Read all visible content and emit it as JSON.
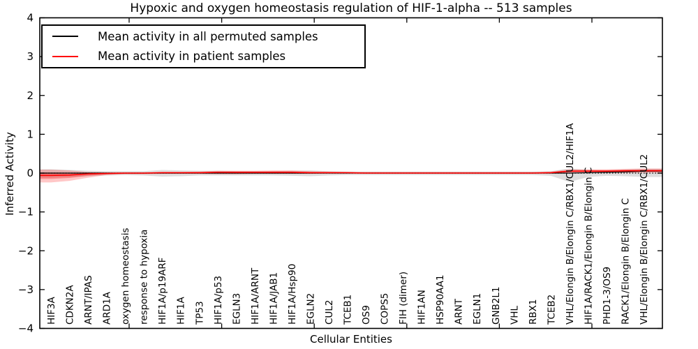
{
  "chart_data": {
    "type": "line",
    "title": "Hypoxic and oxygen homeostasis regulation of HIF-1-alpha -- 513 samples",
    "xlabel": "Cellular Entities",
    "ylabel": "Inferred Activity",
    "ylim": [
      -4,
      4
    ],
    "ytick_values": [
      4,
      3,
      2,
      1,
      0,
      -1,
      -2,
      -3,
      -4
    ],
    "ytick_labels": [
      "4",
      "3",
      "2",
      "1",
      "0",
      "−1",
      "−2",
      "−3",
      "−4"
    ],
    "grid": false,
    "zero_line": "dotted",
    "legend_position": "upper left",
    "legend": [
      {
        "label": "Mean activity in all permuted samples",
        "color": "#000000"
      },
      {
        "label": "Mean activity in patient samples",
        "color": "#ff0000"
      }
    ],
    "categories": [
      "HIF3A",
      "CDKN2A",
      "ARNT/IPAS",
      "ARD1A",
      "oxygen homeostasis",
      "response to hypoxia",
      "HIF1A/p19ARF",
      "HIF1A",
      "TP53",
      "HIF1A/p53",
      "EGLN3",
      "HIF1A/ARNT",
      "HIF1A/JAB1",
      "HIF1A/Hsp90",
      "EGLN2",
      "CUL2",
      "TCEB1",
      "OS9",
      "COPS5",
      "FIH (dimer)",
      "HIF1AN",
      "HSP90AA1",
      "ARNT",
      "EGLN1",
      "GNB2L1",
      "VHL",
      "RBX1",
      "TCEB2",
      "VHL/Elongin B/Elongin C/RBX1/CUL2/HIF1A",
      "HIF1A/RACK1/Elongin B/Elongin C",
      "PHD1-3/OS9",
      "RACK1/Elongin B/Elongin C",
      "VHL/Elongin B/Elongin C/RBX1/CUL2"
    ],
    "series": [
      {
        "name": "Mean activity in all permuted samples",
        "color": "#000000",
        "band_color": "#000000",
        "band_opacity": 0.13,
        "values": [
          0,
          0,
          0,
          0,
          0,
          0,
          0,
          0,
          0,
          0,
          0,
          0,
          0,
          0,
          0,
          0,
          0,
          0,
          0,
          0,
          0,
          0,
          0,
          0,
          0,
          0,
          0,
          0,
          0,
          0.01,
          0.02,
          0.03,
          0.05
        ],
        "band_upper": [
          0.1,
          0.08,
          0.06,
          0.05,
          0.05,
          0.05,
          0.08,
          0.07,
          0.06,
          0.06,
          0.05,
          0.05,
          0.05,
          0.06,
          0.07,
          0.05,
          0.04,
          0.04,
          0.04,
          0.04,
          0.04,
          0.04,
          0.04,
          0.04,
          0.04,
          0.04,
          0.04,
          0.05,
          0.12,
          0.08,
          0.07,
          0.09,
          0.11
        ],
        "band_lower": [
          -0.12,
          -0.1,
          -0.08,
          -0.06,
          -0.05,
          -0.06,
          -0.09,
          -0.08,
          -0.06,
          -0.06,
          -0.06,
          -0.06,
          -0.06,
          -0.07,
          -0.08,
          -0.06,
          -0.05,
          -0.05,
          -0.05,
          -0.05,
          -0.05,
          -0.05,
          -0.05,
          -0.05,
          -0.05,
          -0.05,
          -0.05,
          -0.07,
          -0.23,
          -0.1,
          -0.07,
          -0.08,
          -0.1
        ]
      },
      {
        "name": "Mean activity in patient samples",
        "color": "#ff0000",
        "band_color": "#ff0000",
        "band_opacity": 0.22,
        "values": [
          -0.06,
          -0.05,
          -0.02,
          -0.01,
          0,
          0,
          0.01,
          0.01,
          0.01,
          0.02,
          0.02,
          0.02,
          0.02,
          0.02,
          0.01,
          0.01,
          0.01,
          0,
          0,
          0,
          0,
          0,
          0,
          0,
          0,
          0,
          0,
          0.01,
          0.05,
          0.05,
          0.05,
          0.06,
          0.06
        ],
        "band_upper": [
          0.09,
          0.07,
          0.03,
          0.02,
          0.02,
          0.02,
          0.03,
          0.03,
          0.04,
          0.06,
          0.06,
          0.06,
          0.07,
          0.07,
          0.05,
          0.04,
          0.03,
          0.03,
          0.03,
          0.03,
          0.03,
          0.03,
          0.03,
          0.03,
          0.03,
          0.03,
          0.03,
          0.04,
          0.1,
          0.1,
          0.1,
          0.11,
          0.12
        ],
        "band_lower": [
          -0.24,
          -0.2,
          -0.12,
          -0.05,
          -0.03,
          -0.03,
          -0.02,
          -0.02,
          -0.02,
          -0.03,
          -0.03,
          -0.02,
          -0.02,
          -0.02,
          -0.02,
          -0.01,
          -0.01,
          -0.01,
          -0.01,
          -0.01,
          -0.01,
          -0.01,
          -0.01,
          -0.01,
          -0.01,
          -0.01,
          -0.01,
          -0.01,
          0.0,
          0.01,
          0.01,
          0.01,
          0.01
        ]
      }
    ]
  }
}
